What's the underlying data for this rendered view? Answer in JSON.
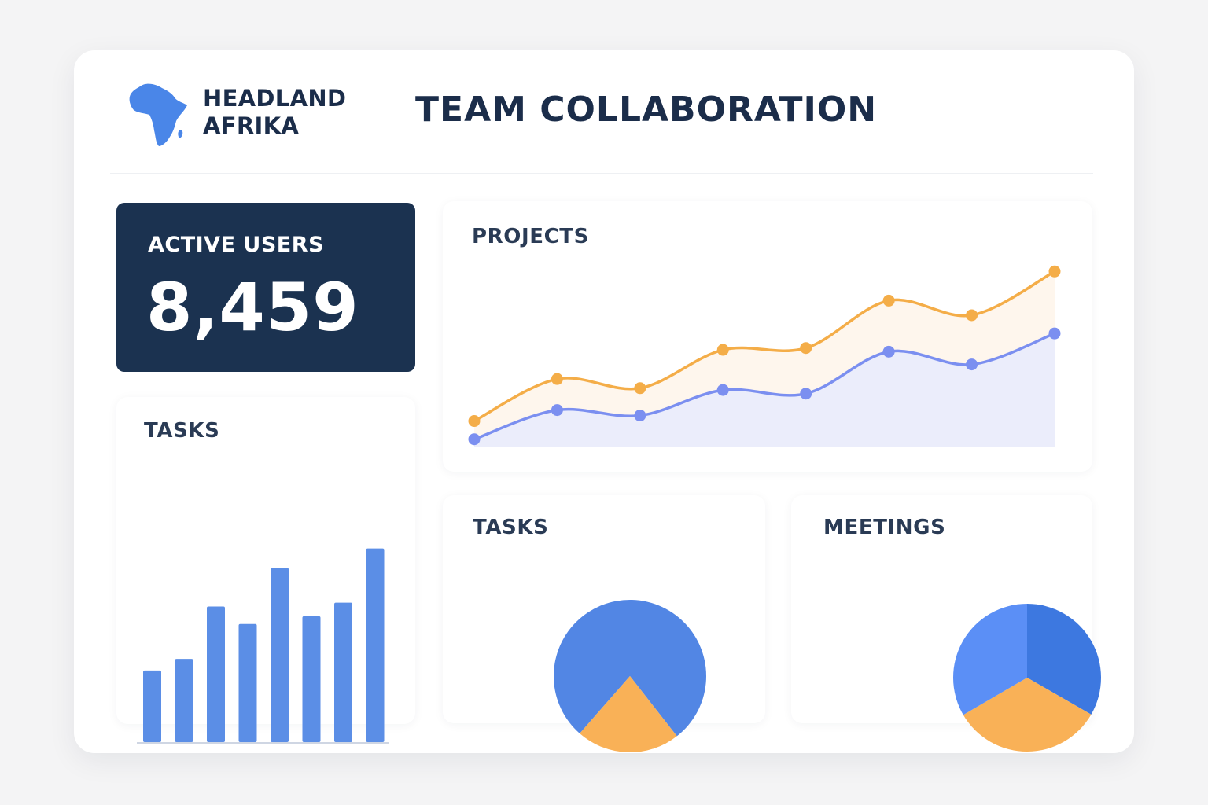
{
  "brand": {
    "logo_icon": "africa-map-icon",
    "line1": "HEADLAND",
    "line2": "AFRIKA",
    "color": "#4a86e8"
  },
  "page": {
    "title": "TEAM COLLABORATION"
  },
  "kpi": {
    "label": "ACTIVE USERS",
    "value": "8,459"
  },
  "colors": {
    "navy": "#1b3250",
    "blue": "#5b8ee6",
    "blue_dark": "#3d78e0",
    "orange": "#f8ad52",
    "line_blue": "#7b8ff0",
    "line_orange": "#f4ad48"
  },
  "cards": {
    "projects_title": "PROJECTS",
    "tasks_bar_title": "TASKS",
    "tasks_pie_title": "TASKS",
    "meetings_title": "MEETINGS"
  },
  "chart_data": [
    {
      "type": "line",
      "title": "PROJECTS",
      "x": [
        1,
        2,
        3,
        4,
        5,
        6,
        7,
        8
      ],
      "ylim": [
        0,
        100
      ],
      "series": [
        {
          "values": [
            14,
            37,
            32,
            53,
            54,
            80,
            72,
            96
          ]
        },
        {
          "values": [
            4,
            20,
            17,
            31,
            29,
            52,
            45,
            62
          ]
        }
      ]
    },
    {
      "type": "bar",
      "title": "TASKS",
      "values": [
        37,
        43,
        70,
        61,
        90,
        65,
        72,
        100
      ],
      "ylim": [
        0,
        110
      ]
    },
    {
      "type": "pie",
      "title": "TASKS",
      "slices": [
        {
          "value": 78,
          "color": "#5286e4"
        },
        {
          "value": 22,
          "color": "#f9b157"
        }
      ]
    },
    {
      "type": "pie",
      "title": "MEETINGS",
      "slices": [
        {
          "value": 33.3,
          "color": "#3d78e0"
        },
        {
          "value": 33.3,
          "color": "#f9b157"
        },
        {
          "value": 33.4,
          "color": "#5b8ff6"
        }
      ]
    }
  ]
}
